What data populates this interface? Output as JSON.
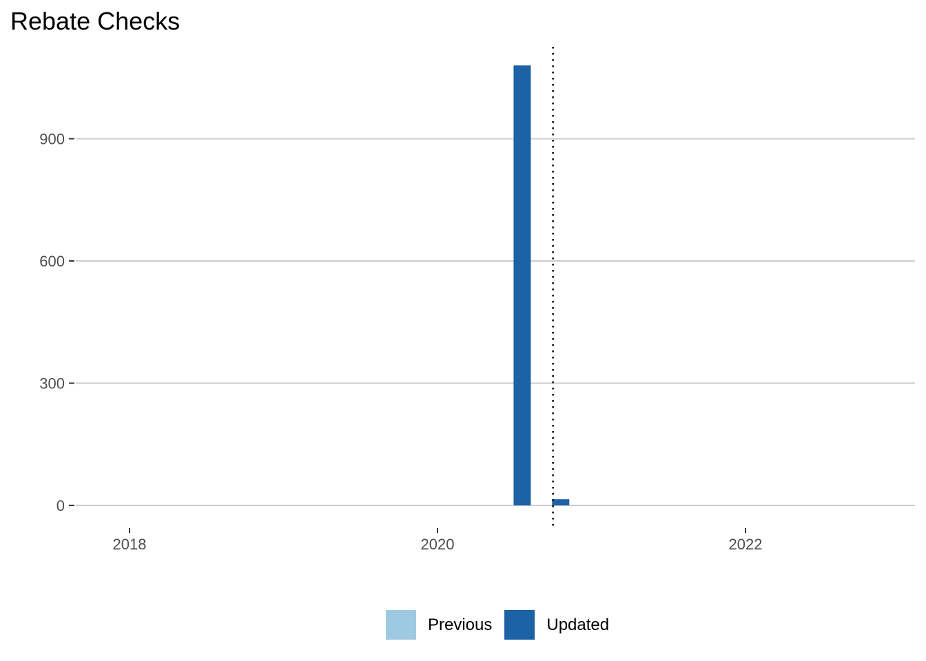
{
  "chart_data": {
    "type": "bar",
    "title": "Rebate Checks",
    "xlabel": "",
    "ylabel": "",
    "x_ticks": [
      "2018",
      "2020",
      "2022"
    ],
    "x_tick_values": [
      2018,
      2020,
      2022
    ],
    "y_ticks": [
      "0",
      "300",
      "600",
      "900"
    ],
    "y_tick_values": [
      0,
      300,
      600,
      900
    ],
    "xlim": [
      2017.4,
      2023.1
    ],
    "ylim": [
      0,
      1130
    ],
    "grid": "horizontal major",
    "legend_position": "bottom",
    "reference_line_x": 2020.75,
    "series": [
      {
        "name": "Previous",
        "color": "#9ecae1",
        "points": []
      },
      {
        "name": "Updated",
        "color": "#1c62a4",
        "points": [
          {
            "x": 2020.55,
            "y": 1080
          },
          {
            "x": 2020.8,
            "y": 15
          }
        ]
      }
    ]
  }
}
